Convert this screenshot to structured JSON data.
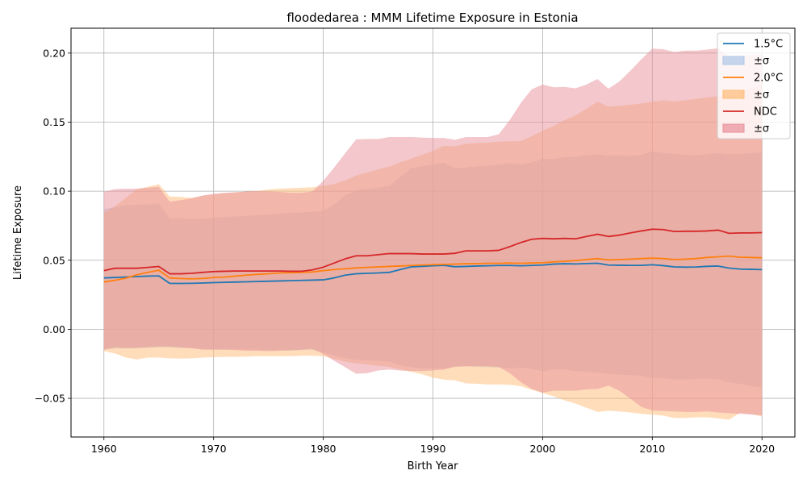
{
  "chart_data": {
    "type": "line",
    "title": "floodedarea : MMM Lifetime Exposure in Estonia",
    "xlabel": "Birth Year",
    "ylabel": "Lifetime Exposure",
    "xlim": [
      1957,
      2023
    ],
    "ylim": [
      -0.078,
      0.218
    ],
    "xticks": [
      1960,
      1970,
      1980,
      1990,
      2000,
      2010,
      2020
    ],
    "xtick_labels": [
      "1960",
      "1970",
      "1980",
      "1990",
      "2000",
      "2010",
      "2020"
    ],
    "yticks": [
      -0.05,
      0.0,
      0.05,
      0.1,
      0.15,
      0.2
    ],
    "ytick_labels": [
      "−0.05",
      "0.00",
      "0.05",
      "0.10",
      "0.15",
      "0.20"
    ],
    "grid": true,
    "legend_position": "top-right",
    "x": [
      1960,
      1961,
      1962,
      1963,
      1964,
      1965,
      1966,
      1967,
      1968,
      1969,
      1970,
      1971,
      1972,
      1973,
      1974,
      1975,
      1976,
      1977,
      1978,
      1979,
      1980,
      1981,
      1982,
      1983,
      1984,
      1985,
      1986,
      1987,
      1988,
      1989,
      1990,
      1991,
      1992,
      1993,
      1994,
      1995,
      1996,
      1997,
      1998,
      1999,
      2000,
      2001,
      2002,
      2003,
      2004,
      2005,
      2006,
      2007,
      2008,
      2009,
      2010,
      2011,
      2012,
      2013,
      2014,
      2015,
      2016,
      2017,
      2018,
      2019,
      2020
    ],
    "series": [
      {
        "name": "1.5°C",
        "band_label": "±σ",
        "color": "#1f77b4",
        "band_color": "#aec7e8",
        "values": [
          0.0372,
          0.0375,
          0.0378,
          0.0382,
          0.0385,
          0.0387,
          0.0332,
          0.0332,
          0.0333,
          0.0335,
          0.0338,
          0.034,
          0.0342,
          0.0344,
          0.0346,
          0.0348,
          0.035,
          0.0352,
          0.0354,
          0.0356,
          0.0358,
          0.0372,
          0.0392,
          0.0402,
          0.0405,
          0.0408,
          0.0412,
          0.0432,
          0.0452,
          0.0456,
          0.046,
          0.0463,
          0.0453,
          0.0455,
          0.0458,
          0.046,
          0.0462,
          0.0462,
          0.046,
          0.0462,
          0.0465,
          0.0472,
          0.0475,
          0.0473,
          0.0476,
          0.0478,
          0.0465,
          0.0464,
          0.0463,
          0.0463,
          0.0467,
          0.0461,
          0.0452,
          0.045,
          0.0451,
          0.0456,
          0.0458,
          0.0443,
          0.0436,
          0.0434,
          0.0432
        ],
        "upper": [
          0.087,
          0.0885,
          0.09,
          0.0902,
          0.0905,
          0.091,
          0.0802,
          0.0805,
          0.0798,
          0.0802,
          0.0808,
          0.0812,
          0.0818,
          0.0822,
          0.0828,
          0.0832,
          0.0838,
          0.0845,
          0.0845,
          0.0852,
          0.0858,
          0.0905,
          0.0972,
          0.1005,
          0.1015,
          0.1025,
          0.1038,
          0.1102,
          0.1168,
          0.1182,
          0.1195,
          0.1205,
          0.1168,
          0.1172,
          0.118,
          0.1186,
          0.1193,
          0.1202,
          0.1195,
          0.1208,
          0.1235,
          0.1232,
          0.1245,
          0.125,
          0.126,
          0.1268,
          0.1258,
          0.1258,
          0.1256,
          0.1262,
          0.129,
          0.1278,
          0.127,
          0.1265,
          0.126,
          0.1268,
          0.1276,
          0.1268,
          0.127,
          0.1275,
          0.128
        ],
        "lower": [
          -0.0148,
          -0.014,
          -0.014,
          -0.0138,
          -0.0135,
          -0.0132,
          -0.0132,
          -0.0136,
          -0.0135,
          -0.0142,
          -0.0145,
          -0.0145,
          -0.0145,
          -0.0145,
          -0.0148,
          -0.015,
          -0.0152,
          -0.0155,
          -0.015,
          -0.0152,
          -0.0165,
          -0.019,
          -0.021,
          -0.0222,
          -0.0225,
          -0.0228,
          -0.0235,
          -0.0258,
          -0.0275,
          -0.0282,
          -0.0285,
          -0.0285,
          -0.0268,
          -0.0268,
          -0.0272,
          -0.0275,
          -0.0278,
          -0.0282,
          -0.0278,
          -0.0288,
          -0.0305,
          -0.029,
          -0.0292,
          -0.0302,
          -0.0308,
          -0.0312,
          -0.0322,
          -0.0328,
          -0.0332,
          -0.0338,
          -0.0355,
          -0.0355,
          -0.0365,
          -0.0365,
          -0.036,
          -0.0358,
          -0.0362,
          -0.0385,
          -0.0395,
          -0.041,
          -0.042
        ]
      },
      {
        "name": "2.0°C",
        "band_label": "±σ",
        "color": "#ff7f0e",
        "band_color": "#ffbb78",
        "values": [
          0.0342,
          0.0355,
          0.037,
          0.0395,
          0.0412,
          0.0428,
          0.0372,
          0.0368,
          0.0365,
          0.0368,
          0.0375,
          0.0378,
          0.0385,
          0.0392,
          0.0398,
          0.0402,
          0.0408,
          0.041,
          0.0412,
          0.0415,
          0.0425,
          0.0432,
          0.0438,
          0.0445,
          0.0448,
          0.0452,
          0.0455,
          0.0458,
          0.0462,
          0.0465,
          0.0468,
          0.047,
          0.0472,
          0.0475,
          0.0475,
          0.0478,
          0.0478,
          0.048,
          0.0478,
          0.048,
          0.0482,
          0.0488,
          0.0492,
          0.0498,
          0.0505,
          0.0512,
          0.0502,
          0.0505,
          0.0508,
          0.0512,
          0.0515,
          0.0512,
          0.0505,
          0.0508,
          0.0512,
          0.052,
          0.0525,
          0.053,
          0.0522,
          0.052,
          0.0518
        ],
        "upper": [
          0.0845,
          0.089,
          0.0952,
          0.1015,
          0.1032,
          0.105,
          0.0962,
          0.0958,
          0.0952,
          0.0968,
          0.0975,
          0.0985,
          0.0992,
          0.0998,
          0.1002,
          0.1012,
          0.1018,
          0.1022,
          0.1025,
          0.1028,
          0.1038,
          0.1052,
          0.1078,
          0.1112,
          0.1135,
          0.1158,
          0.1178,
          0.1208,
          0.1235,
          0.1262,
          0.1292,
          0.1328,
          0.1325,
          0.1342,
          0.1348,
          0.1352,
          0.1358,
          0.1362,
          0.1362,
          0.1398,
          0.1438,
          0.1472,
          0.1515,
          0.1548,
          0.1598,
          0.1648,
          0.1612,
          0.1618,
          0.1625,
          0.1635,
          0.1648,
          0.1658,
          0.165,
          0.1658,
          0.1668,
          0.1678,
          0.1688,
          0.1702,
          0.1722,
          0.1745,
          0.1768
        ],
        "lower": [
          -0.0158,
          -0.0175,
          -0.0205,
          -0.0218,
          -0.0205,
          -0.0205,
          -0.021,
          -0.0212,
          -0.021,
          -0.0205,
          -0.0202,
          -0.02,
          -0.02,
          -0.0198,
          -0.0195,
          -0.0195,
          -0.0195,
          -0.0195,
          -0.0192,
          -0.0192,
          -0.0195,
          -0.0215,
          -0.0235,
          -0.0248,
          -0.0255,
          -0.0265,
          -0.0272,
          -0.029,
          -0.0308,
          -0.0325,
          -0.035,
          -0.0365,
          -0.037,
          -0.0392,
          -0.0395,
          -0.04,
          -0.04,
          -0.0402,
          -0.0412,
          -0.0438,
          -0.0462,
          -0.0485,
          -0.0515,
          -0.0538,
          -0.0568,
          -0.0598,
          -0.059,
          -0.0595,
          -0.0602,
          -0.0612,
          -0.0618,
          -0.0625,
          -0.0642,
          -0.0642,
          -0.0638,
          -0.0638,
          -0.0645,
          -0.0655,
          -0.0605,
          -0.0612,
          -0.0632
        ]
      },
      {
        "name": "NDC",
        "band_label": "±σ",
        "color": "#d62728",
        "band_color": "#e8909a",
        "values": [
          0.0425,
          0.0442,
          0.0442,
          0.0442,
          0.0448,
          0.0455,
          0.0402,
          0.0402,
          0.0405,
          0.0412,
          0.0418,
          0.042,
          0.0422,
          0.0422,
          0.0422,
          0.0422,
          0.0422,
          0.042,
          0.042,
          0.043,
          0.045,
          0.048,
          0.051,
          0.0532,
          0.0532,
          0.054,
          0.0548,
          0.0548,
          0.0548,
          0.0545,
          0.0545,
          0.0545,
          0.055,
          0.0568,
          0.0568,
          0.0568,
          0.0572,
          0.0598,
          0.0628,
          0.0652,
          0.0658,
          0.0655,
          0.0658,
          0.0655,
          0.0672,
          0.0688,
          0.0672,
          0.0682,
          0.0698,
          0.0712,
          0.0725,
          0.0722,
          0.0708,
          0.071,
          0.071,
          0.0712,
          0.0718,
          0.0695,
          0.0698,
          0.0698,
          0.07
        ],
        "upper": [
          0.0995,
          0.1015,
          0.1018,
          0.1018,
          0.1025,
          0.1032,
          0.0925,
          0.0935,
          0.0948,
          0.0968,
          0.0982,
          0.0988,
          0.0992,
          0.0998,
          0.1,
          0.0998,
          0.0995,
          0.0988,
          0.0988,
          0.0998,
          0.1075,
          0.1172,
          0.1275,
          0.1375,
          0.1378,
          0.1378,
          0.1392,
          0.1392,
          0.1392,
          0.1388,
          0.1385,
          0.1385,
          0.1372,
          0.1392,
          0.1392,
          0.1392,
          0.1412,
          0.1515,
          0.1638,
          0.1738,
          0.1772,
          0.1752,
          0.1755,
          0.1745,
          0.1772,
          0.1812,
          0.1742,
          0.1795,
          0.1872,
          0.1955,
          0.2032,
          0.2028,
          0.2008,
          0.2018,
          0.2018,
          0.2025,
          0.2035,
          0.1975,
          0.1985,
          0.1985,
          0.199
        ],
        "lower": [
          -0.0148,
          -0.0132,
          -0.0135,
          -0.0135,
          -0.013,
          -0.0125,
          -0.0125,
          -0.0132,
          -0.0138,
          -0.0148,
          -0.0148,
          -0.0148,
          -0.015,
          -0.0155,
          -0.0155,
          -0.0158,
          -0.0155,
          -0.0152,
          -0.0148,
          -0.0142,
          -0.0178,
          -0.0228,
          -0.0275,
          -0.0322,
          -0.0318,
          -0.0298,
          -0.0292,
          -0.0298,
          -0.0302,
          -0.0302,
          -0.0298,
          -0.0292,
          -0.0272,
          -0.0268,
          -0.0268,
          -0.0268,
          -0.0272,
          -0.0318,
          -0.0382,
          -0.0432,
          -0.0458,
          -0.0445,
          -0.0445,
          -0.0445,
          -0.0435,
          -0.0432,
          -0.0408,
          -0.0445,
          -0.0502,
          -0.0562,
          -0.0588,
          -0.0592,
          -0.0595,
          -0.0598,
          -0.0598,
          -0.0595,
          -0.0602,
          -0.0608,
          -0.0612,
          -0.0618,
          -0.0622
        ]
      }
    ]
  }
}
